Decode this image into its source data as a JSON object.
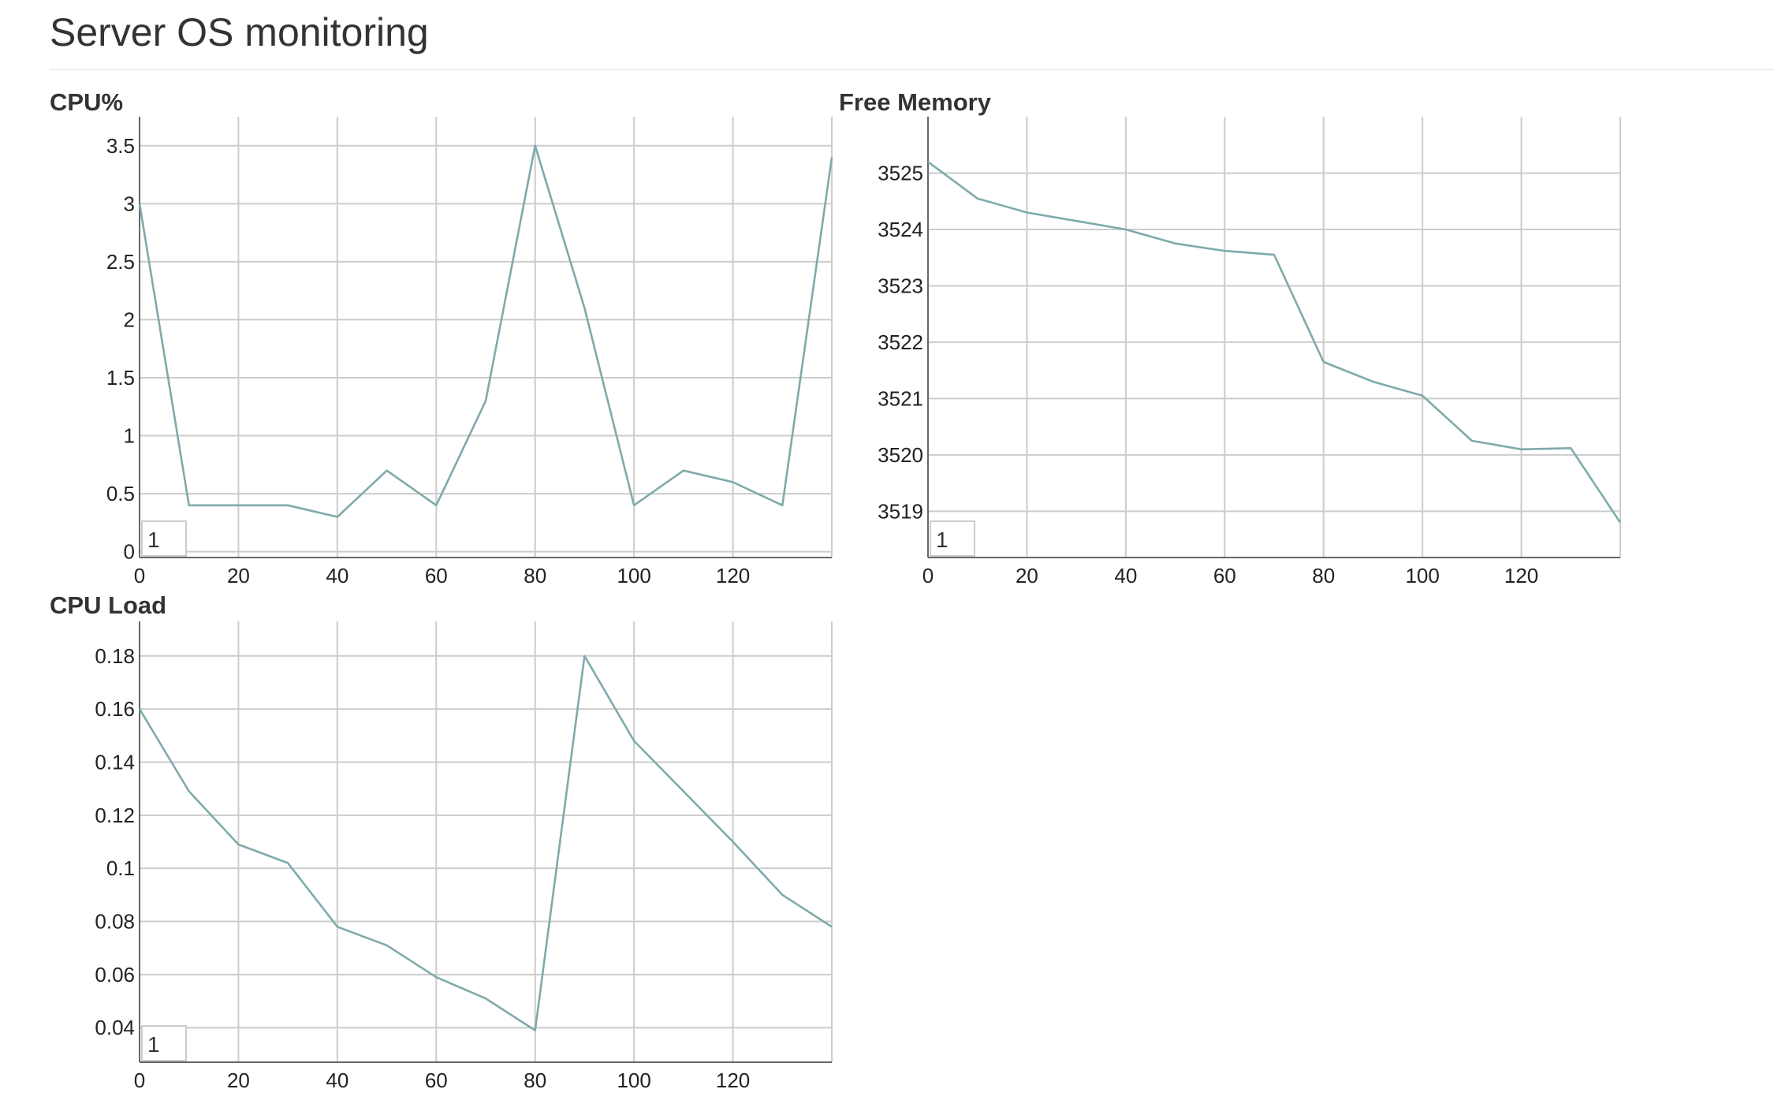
{
  "page": {
    "title": "Server OS monitoring"
  },
  "colors": {
    "series": "#7faaab",
    "grid": "#cccccc",
    "axis": "#666666"
  },
  "chart_data": [
    {
      "id": "cpu-percent",
      "type": "line",
      "title": "CPU%",
      "xlabel": "",
      "ylabel": "",
      "xlim": [
        0,
        140
      ],
      "ylim": [
        -0.05,
        3.75
      ],
      "xticks": [
        0,
        20,
        40,
        60,
        80,
        100,
        120
      ],
      "xticks_grid": [
        0,
        20,
        40,
        60,
        80,
        100,
        120,
        140
      ],
      "yticks": [
        0,
        0.5,
        1,
        1.5,
        2,
        2.5,
        3,
        3.5
      ],
      "ytick_labels": [
        "0",
        "0.5",
        "1",
        "1.5",
        "2",
        "2.5",
        "3",
        "3.5"
      ],
      "grid": true,
      "legend": "bottom-left",
      "series": [
        {
          "name": "1",
          "x": [
            0,
            10,
            20,
            30,
            40,
            50,
            60,
            70,
            80,
            90,
            100,
            110,
            120,
            130,
            140
          ],
          "y": [
            3.0,
            0.4,
            0.4,
            0.4,
            0.3,
            0.7,
            0.4,
            1.3,
            3.5,
            2.1,
            0.4,
            0.7,
            0.6,
            0.4,
            3.4
          ]
        }
      ]
    },
    {
      "id": "free-memory",
      "type": "line",
      "title": "Free Memory",
      "xlabel": "",
      "ylabel": "",
      "xlim": [
        0,
        140
      ],
      "ylim": [
        3518.18,
        3526
      ],
      "xticks": [
        0,
        20,
        40,
        60,
        80,
        100,
        120
      ],
      "xticks_grid": [
        0,
        20,
        40,
        60,
        80,
        100,
        120,
        140
      ],
      "yticks": [
        3519,
        3520,
        3521,
        3522,
        3523,
        3524,
        3525
      ],
      "ytick_labels": [
        "3519",
        "3520",
        "3521",
        "3522",
        "3523",
        "3524",
        "3525"
      ],
      "grid": true,
      "legend": "bottom-left",
      "series": [
        {
          "name": "1",
          "x": [
            0,
            10,
            20,
            30,
            40,
            50,
            60,
            70,
            80,
            90,
            100,
            110,
            120,
            130,
            140
          ],
          "y": [
            3525.2,
            3524.55,
            3524.3,
            3524.15,
            3524.0,
            3523.75,
            3523.62,
            3523.55,
            3521.65,
            3521.3,
            3521.05,
            3520.25,
            3520.1,
            3520.12,
            3518.8
          ]
        }
      ]
    },
    {
      "id": "cpu-load",
      "type": "line",
      "title": "CPU Load",
      "xlabel": "",
      "ylabel": "",
      "xlim": [
        0,
        140
      ],
      "ylim": [
        0.027,
        0.193
      ],
      "xticks": [
        0,
        20,
        40,
        60,
        80,
        100,
        120
      ],
      "xticks_grid": [
        0,
        20,
        40,
        60,
        80,
        100,
        120,
        140
      ],
      "yticks": [
        0.04,
        0.06,
        0.08,
        0.1,
        0.12,
        0.14,
        0.16,
        0.18
      ],
      "ytick_labels": [
        "0.04",
        "0.06",
        "0.08",
        "0.1",
        "0.12",
        "0.14",
        "0.16",
        "0.18"
      ],
      "grid": true,
      "legend": "bottom-left",
      "series": [
        {
          "name": "1",
          "x": [
            0,
            10,
            20,
            30,
            40,
            50,
            60,
            70,
            80,
            90,
            100,
            110,
            120,
            130,
            140
          ],
          "y": [
            0.16,
            0.129,
            0.109,
            0.102,
            0.078,
            0.071,
            0.059,
            0.051,
            0.039,
            0.18,
            0.148,
            0.129,
            0.11,
            0.09,
            0.078
          ]
        }
      ]
    }
  ]
}
